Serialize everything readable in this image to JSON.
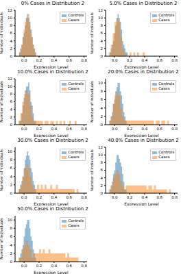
{
  "chart_data": [
    {
      "type": "histogram",
      "title": "0% Cases in Distribution 2",
      "x_label": "Expression Level",
      "y_label": "Number of Individuals",
      "xlim": [
        -0.12,
        0.84
      ],
      "xticks": [
        {
          "value": 0,
          "label": "0.0"
        },
        {
          "value": 0.2,
          "label": "0.2"
        },
        {
          "value": 0.4,
          "label": "0.4"
        },
        {
          "value": 0.6,
          "label": "0.6"
        },
        {
          "value": 0.8,
          "label": "0.8"
        }
      ],
      "ylim": [
        0,
        12
      ],
      "yticks": [
        0,
        2,
        4,
        6,
        8,
        10,
        12
      ],
      "legend": "upper right",
      "series": [
        {
          "name": "Controls",
          "color": "#1f77b4",
          "bins": [
            -0.08,
            -0.065,
            -0.05,
            -0.035,
            -0.02,
            -0.005,
            0.01,
            0.025,
            0.04,
            0.055,
            0.07,
            0.085,
            0.1,
            0.115,
            0.13,
            0.145,
            0.16,
            0.175,
            0.19
          ],
          "values": [
            0,
            1,
            2,
            3,
            5,
            6,
            8,
            10,
            11,
            10,
            9,
            7,
            5,
            3,
            2,
            1,
            0,
            0
          ]
        },
        {
          "name": "Cases",
          "color": "#ff7f0e",
          "bins": [
            -0.08,
            -0.065,
            -0.05,
            -0.035,
            -0.02,
            -0.005,
            0.01,
            0.025,
            0.04,
            0.055,
            0.07,
            0.085,
            0.1,
            0.115,
            0.13,
            0.145,
            0.16,
            0.175,
            0.19
          ],
          "values": [
            0,
            1,
            2,
            3,
            5,
            7,
            9,
            10,
            10,
            11,
            8,
            6,
            5,
            3,
            2,
            1,
            0,
            0
          ]
        }
      ]
    },
    {
      "type": "histogram",
      "title": "5.0% Cases in Distribution 2",
      "x_label": "Expression Level",
      "y_label": "Number of Individuals",
      "xlim": [
        -0.12,
        0.84
      ],
      "xticks": [
        {
          "value": 0,
          "label": "0.0"
        },
        {
          "value": 0.2,
          "label": "0.2"
        },
        {
          "value": 0.4,
          "label": "0.4"
        },
        {
          "value": 0.6,
          "label": "0.6"
        },
        {
          "value": 0.8,
          "label": "0.8"
        }
      ],
      "ylim": [
        0,
        12
      ],
      "yticks": [
        0,
        2,
        4,
        6,
        8,
        10,
        12
      ],
      "legend": "upper right",
      "series": [
        {
          "name": "Controls",
          "color": "#1f77b4",
          "bins": [
            -0.08,
            -0.065,
            -0.05,
            -0.035,
            -0.02,
            -0.005,
            0.01,
            0.025,
            0.04,
            0.055,
            0.07,
            0.085,
            0.1,
            0.115,
            0.13,
            0.145,
            0.16,
            0.175,
            0.19
          ],
          "values": [
            0,
            1,
            2,
            3,
            4,
            6,
            8,
            10,
            11,
            10,
            9,
            7,
            4,
            3,
            2,
            1,
            1,
            0
          ]
        },
        {
          "name": "Cases",
          "color": "#ff7f0e",
          "bins": [
            -0.1,
            -0.075,
            -0.05,
            -0.025,
            0,
            0.025,
            0.05,
            0.075,
            0.1,
            0.125,
            0.15,
            0.175,
            0.2,
            0.225,
            0.25,
            0.275,
            0.3,
            0.325,
            0.35,
            0.375,
            0.4,
            0.425,
            0.45,
            0.475,
            0.5,
            0.525,
            0.55,
            0.575,
            0.6,
            0.625,
            0.65,
            0.675,
            0.7,
            0.725,
            0.75,
            0.775,
            0.8
          ],
          "values": [
            0,
            1,
            3,
            6,
            9,
            10,
            9,
            5,
            2,
            1,
            0,
            0,
            1,
            0,
            1,
            0,
            1,
            0,
            0,
            1,
            0,
            0,
            0,
            0,
            0,
            0,
            0,
            0,
            0,
            0,
            0,
            0,
            0,
            0,
            0,
            0
          ]
        }
      ]
    },
    {
      "type": "histogram",
      "title": "10.0% Cases in Distribution 2",
      "x_label": "Expression Level",
      "y_label": "Number of Individuals",
      "xlim": [
        -0.12,
        0.84
      ],
      "xticks": [
        {
          "value": 0,
          "label": "0.0"
        },
        {
          "value": 0.2,
          "label": "0.2"
        },
        {
          "value": 0.4,
          "label": "0.4"
        },
        {
          "value": 0.6,
          "label": "0.6"
        },
        {
          "value": 0.8,
          "label": "0.8"
        }
      ],
      "ylim": [
        0,
        12
      ],
      "yticks": [
        0,
        2,
        4,
        6,
        8,
        10,
        12
      ],
      "legend": "upper right",
      "series": [
        {
          "name": "Controls",
          "color": "#1f77b4",
          "bins": [
            -0.08,
            -0.065,
            -0.05,
            -0.035,
            -0.02,
            -0.005,
            0.01,
            0.025,
            0.04,
            0.055,
            0.07,
            0.085,
            0.1,
            0.115,
            0.13,
            0.145,
            0.16,
            0.175,
            0.19
          ],
          "values": [
            0,
            1,
            1,
            3,
            5,
            7,
            9,
            10,
            10,
            11,
            9,
            6,
            5,
            3,
            1,
            1,
            0,
            0
          ]
        },
        {
          "name": "Cases",
          "color": "#ff7f0e",
          "bins": [
            -0.1,
            -0.075,
            -0.05,
            -0.025,
            0,
            0.025,
            0.05,
            0.075,
            0.1,
            0.125,
            0.15,
            0.175,
            0.2,
            0.225,
            0.25,
            0.275,
            0.3,
            0.325,
            0.35,
            0.375,
            0.4,
            0.425,
            0.45,
            0.475,
            0.5,
            0.525,
            0.55,
            0.575,
            0.6,
            0.625,
            0.65,
            0.675,
            0.7,
            0.725,
            0.75,
            0.775,
            0.8
          ],
          "values": [
            0,
            1,
            3,
            6,
            8,
            9,
            8,
            5,
            2,
            1,
            1,
            1,
            1,
            1,
            0,
            1,
            1,
            0,
            1,
            1,
            0,
            1,
            0,
            1,
            0,
            1,
            0,
            0,
            1,
            0,
            0,
            1,
            0,
            0,
            0,
            0
          ]
        }
      ]
    },
    {
      "type": "histogram",
      "title": "20.0% Cases in Distribution 2",
      "x_label": "Expression Level",
      "y_label": "Number of Individuals",
      "xlim": [
        -0.12,
        0.84
      ],
      "xticks": [
        {
          "value": 0,
          "label": "0.0"
        },
        {
          "value": 0.2,
          "label": "0.2"
        },
        {
          "value": 0.4,
          "label": "0.4"
        },
        {
          "value": 0.6,
          "label": "0.6"
        },
        {
          "value": 0.8,
          "label": "0.8"
        }
      ],
      "ylim": [
        0,
        11
      ],
      "yticks": [
        0,
        2,
        4,
        6,
        8,
        10
      ],
      "legend": "upper right",
      "series": [
        {
          "name": "Controls",
          "color": "#1f77b4",
          "bins": [
            -0.08,
            -0.065,
            -0.05,
            -0.035,
            -0.02,
            -0.005,
            0.01,
            0.025,
            0.04,
            0.055,
            0.07,
            0.085,
            0.1,
            0.115,
            0.13,
            0.145,
            0.16,
            0.175,
            0.19
          ],
          "values": [
            0,
            1,
            2,
            3,
            5,
            6,
            8,
            9,
            10,
            10,
            8,
            7,
            5,
            3,
            2,
            1,
            0,
            0
          ]
        },
        {
          "name": "Cases",
          "color": "#ff7f0e",
          "bins": [
            -0.1,
            -0.075,
            -0.05,
            -0.025,
            0,
            0.025,
            0.05,
            0.075,
            0.1,
            0.125,
            0.15,
            0.175,
            0.2,
            0.225,
            0.25,
            0.275,
            0.3,
            0.325,
            0.35,
            0.375,
            0.4,
            0.425,
            0.45,
            0.475,
            0.5,
            0.525,
            0.55,
            0.575,
            0.6,
            0.625,
            0.65,
            0.675,
            0.7,
            0.725,
            0.75,
            0.775,
            0.8
          ],
          "values": [
            0,
            1,
            2,
            5,
            7,
            8,
            7,
            4,
            2,
            1,
            1,
            1,
            1,
            1,
            1,
            1,
            1,
            1,
            1,
            1,
            1,
            1,
            1,
            1,
            1,
            0,
            1,
            1,
            0,
            1,
            1,
            0,
            1,
            0,
            0,
            0
          ]
        }
      ]
    },
    {
      "type": "histogram",
      "title": "30.0% Cases in Distribution 2",
      "x_label": "Expression Level",
      "y_label": "Number of Individuals",
      "xlim": [
        -0.12,
        0.84
      ],
      "xticks": [
        {
          "value": 0,
          "label": "0.0"
        },
        {
          "value": 0.2,
          "label": "0.2"
        },
        {
          "value": 0.4,
          "label": "0.4"
        },
        {
          "value": 0.6,
          "label": "0.6"
        },
        {
          "value": 0.8,
          "label": "0.8"
        }
      ],
      "ylim": [
        0,
        11
      ],
      "yticks": [
        0,
        2,
        4,
        6,
        8,
        10
      ],
      "legend": "upper right",
      "series": [
        {
          "name": "Controls",
          "color": "#1f77b4",
          "bins": [
            -0.08,
            -0.065,
            -0.05,
            -0.035,
            -0.02,
            -0.005,
            0.01,
            0.025,
            0.04,
            0.055,
            0.07,
            0.085,
            0.1,
            0.115,
            0.13,
            0.145,
            0.16,
            0.175,
            0.19
          ],
          "values": [
            0,
            1,
            2,
            3,
            4,
            6,
            8,
            9,
            10,
            9,
            8,
            6,
            5,
            3,
            2,
            1,
            0,
            0
          ]
        },
        {
          "name": "Cases",
          "color": "#ff7f0e",
          "bins": [
            -0.1,
            -0.075,
            -0.05,
            -0.025,
            0,
            0.025,
            0.05,
            0.075,
            0.1,
            0.125,
            0.15,
            0.175,
            0.2,
            0.225,
            0.25,
            0.275,
            0.3,
            0.325,
            0.35,
            0.375,
            0.4,
            0.425,
            0.45,
            0.475,
            0.5,
            0.525,
            0.55,
            0.575,
            0.6,
            0.625,
            0.65,
            0.675,
            0.7,
            0.725,
            0.75,
            0.775,
            0.8
          ],
          "values": [
            0,
            1,
            2,
            4,
            6,
            7,
            6,
            4,
            2,
            1,
            1,
            2,
            1,
            2,
            1,
            2,
            1,
            1,
            2,
            1,
            1,
            2,
            1,
            1,
            1,
            1,
            1,
            1,
            1,
            1,
            1,
            0,
            1,
            0,
            0,
            0
          ]
        }
      ]
    },
    {
      "type": "histogram",
      "title": "40.0% Cases in Distribution 2",
      "x_label": "Expression Level",
      "y_label": "Number of Individuals",
      "xlim": [
        -0.12,
        0.84
      ],
      "xticks": [
        {
          "value": 0,
          "label": "0.0"
        },
        {
          "value": 0.2,
          "label": "0.2"
        },
        {
          "value": 0.4,
          "label": "0.4"
        },
        {
          "value": 0.6,
          "label": "0.6"
        },
        {
          "value": 0.8,
          "label": "0.8"
        }
      ],
      "ylim": [
        0,
        12
      ],
      "yticks": [
        0,
        2,
        4,
        6,
        8,
        10,
        12
      ],
      "legend": "upper right",
      "series": [
        {
          "name": "Controls",
          "color": "#1f77b4",
          "bins": [
            -0.08,
            -0.065,
            -0.05,
            -0.035,
            -0.02,
            -0.005,
            0.01,
            0.025,
            0.04,
            0.055,
            0.07,
            0.085,
            0.1,
            0.115,
            0.13,
            0.145,
            0.16,
            0.175,
            0.19
          ],
          "values": [
            0,
            1,
            2,
            3,
            5,
            6,
            8,
            10,
            10,
            9,
            8,
            7,
            5,
            3,
            1,
            1,
            0,
            0
          ]
        },
        {
          "name": "Cases",
          "color": "#ff7f0e",
          "bins": [
            -0.1,
            -0.075,
            -0.05,
            -0.025,
            0,
            0.025,
            0.05,
            0.075,
            0.1,
            0.125,
            0.15,
            0.175,
            0.2,
            0.225,
            0.25,
            0.275,
            0.3,
            0.325,
            0.35,
            0.375,
            0.4,
            0.425,
            0.45,
            0.475,
            0.5,
            0.525,
            0.55,
            0.575,
            0.6,
            0.625,
            0.65,
            0.675,
            0.7,
            0.725,
            0.75,
            0.775,
            0.8
          ],
          "values": [
            0,
            1,
            2,
            4,
            5,
            6,
            5,
            3,
            2,
            1,
            2,
            2,
            2,
            2,
            2,
            2,
            2,
            2,
            2,
            2,
            2,
            1,
            2,
            2,
            1,
            2,
            1,
            1,
            1,
            1,
            1,
            1,
            0,
            1,
            0,
            0
          ]
        }
      ]
    },
    {
      "type": "histogram",
      "title": "50.0% Cases in Distribution 2",
      "x_label": "Expression Level",
      "y_label": "Number of Individuals",
      "xlim": [
        -0.12,
        0.84
      ],
      "xticks": [
        {
          "value": 0,
          "label": "0.0"
        },
        {
          "value": 0.2,
          "label": "0.2"
        },
        {
          "value": 0.4,
          "label": "0.4"
        },
        {
          "value": 0.6,
          "label": "0.6"
        },
        {
          "value": 0.8,
          "label": "0.8"
        }
      ],
      "ylim": [
        0,
        11
      ],
      "yticks": [
        0,
        2,
        4,
        6,
        8,
        10
      ],
      "legend": "upper right",
      "series": [
        {
          "name": "Controls",
          "color": "#1f77b4",
          "bins": [
            -0.08,
            -0.065,
            -0.05,
            -0.035,
            -0.02,
            -0.005,
            0.01,
            0.025,
            0.04,
            0.055,
            0.07,
            0.085,
            0.1,
            0.115,
            0.13,
            0.145,
            0.16,
            0.175,
            0.19
          ],
          "values": [
            0,
            1,
            2,
            3,
            4,
            6,
            8,
            9,
            10,
            10,
            8,
            6,
            5,
            3,
            2,
            1,
            0,
            0
          ]
        },
        {
          "name": "Cases",
          "color": "#ff7f0e",
          "bins": [
            -0.1,
            -0.075,
            -0.05,
            -0.025,
            0,
            0.025,
            0.05,
            0.075,
            0.1,
            0.125,
            0.15,
            0.175,
            0.2,
            0.225,
            0.25,
            0.275,
            0.3,
            0.325,
            0.35,
            0.375,
            0.4,
            0.425,
            0.45,
            0.475,
            0.5,
            0.525,
            0.55,
            0.575,
            0.6,
            0.625,
            0.65,
            0.675,
            0.7,
            0.725,
            0.75,
            0.775,
            0.8
          ],
          "values": [
            0,
            1,
            1,
            3,
            4,
            5,
            4,
            3,
            1,
            2,
            2,
            2,
            3,
            2,
            3,
            2,
            2,
            3,
            2,
            2,
            2,
            2,
            2,
            2,
            2,
            2,
            1,
            2,
            1,
            1,
            1,
            1,
            1,
            0,
            0,
            0
          ]
        }
      ]
    }
  ]
}
